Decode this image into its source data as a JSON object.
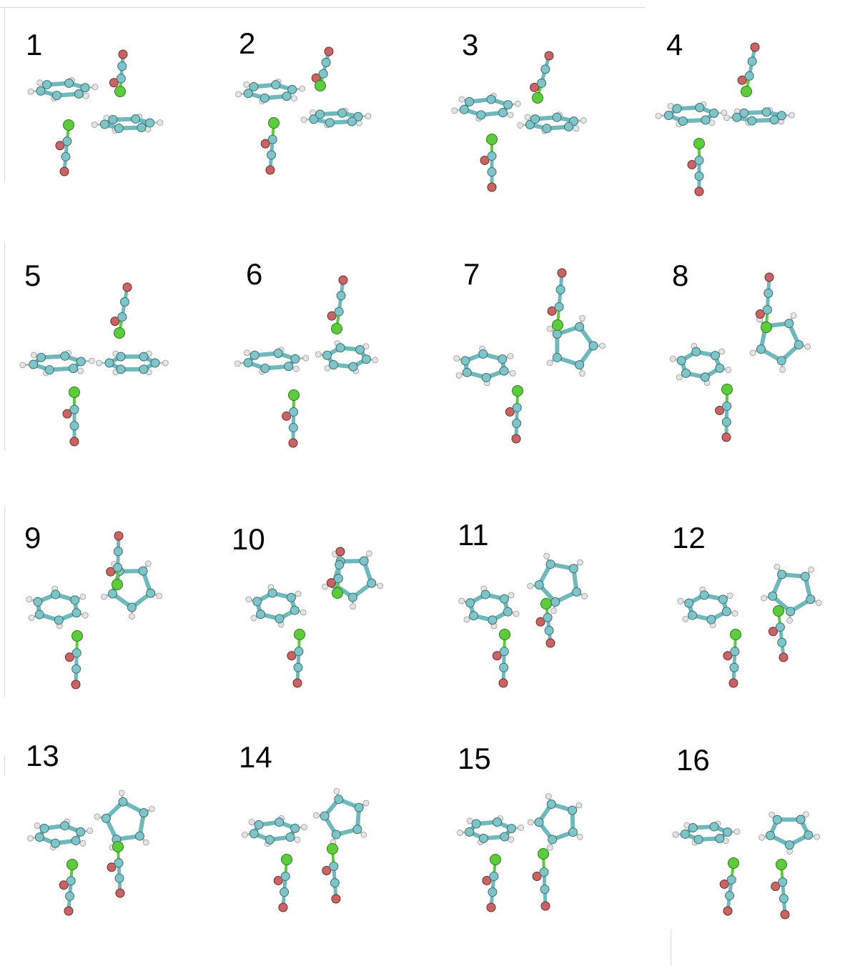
{
  "figure": {
    "panels": [
      {
        "label": "1"
      },
      {
        "label": "2"
      },
      {
        "label": "3"
      },
      {
        "label": "4"
      },
      {
        "label": "5"
      },
      {
        "label": "6"
      },
      {
        "label": "7"
      },
      {
        "label": "8"
      },
      {
        "label": "9"
      },
      {
        "label": "10"
      },
      {
        "label": "11"
      },
      {
        "label": "12"
      },
      {
        "label": "13"
      },
      {
        "label": "14"
      },
      {
        "label": "15"
      },
      {
        "label": "16"
      }
    ],
    "colors": {
      "carbon": "#7fc4c8",
      "bond": "#6fb8bc",
      "oxygen": "#c86464",
      "chlorine": "#5ccc3c",
      "hydrogen": "#e4e4e4",
      "stroke": "#3a6e70"
    }
  }
}
